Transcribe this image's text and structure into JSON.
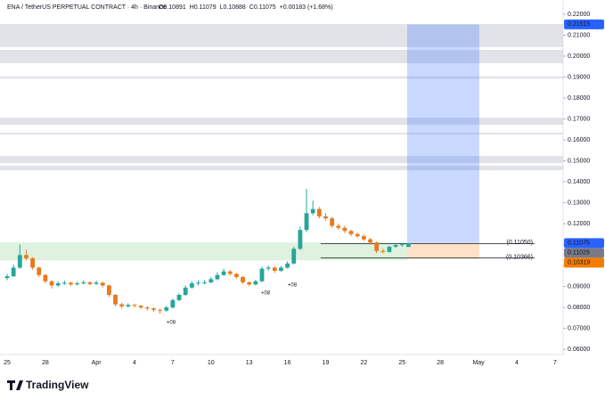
{
  "header": {
    "symbol": "ENA / TetherUS PERPETUAL CONTRACT · 4h · Binance",
    "ohlc": [
      "O0.10891",
      "H0.11079",
      "L0.10888",
      "C0.11075",
      "+0.00183 (+1.68%)"
    ]
  },
  "footer": {
    "brand": "TradingView"
  },
  "chart_data": {
    "type": "candlestick",
    "x": [
      0,
      0.5,
      1,
      1.5,
      2,
      2.5,
      3,
      3.5,
      4,
      4.5,
      5,
      5.5,
      6,
      6.5,
      7,
      7.5,
      8,
      8.5,
      9,
      9.5,
      10,
      10.5,
      11,
      11.5,
      12,
      12.5,
      13,
      13.5,
      14,
      14.5,
      15,
      15.5,
      16,
      16.5,
      17,
      17.5,
      18,
      18.5,
      19,
      19.5,
      20,
      20.5,
      21,
      21.5,
      22,
      22.5,
      23,
      23.5,
      24,
      24.5,
      25,
      25.5,
      26,
      26.5,
      27,
      27.5,
      28,
      28.5,
      29,
      29.5,
      30,
      30.5,
      31,
      31.5
    ],
    "open": [
      0.094,
      0.0949,
      0.099,
      0.105,
      0.1035,
      0.099,
      0.0955,
      0.0925,
      0.0905,
      0.0915,
      0.0918,
      0.091,
      0.0915,
      0.092,
      0.0912,
      0.0918,
      0.0905,
      0.086,
      0.0815,
      0.0805,
      0.0812,
      0.0808,
      0.08,
      0.0795,
      0.0788,
      0.0785,
      0.08,
      0.0835,
      0.086,
      0.0895,
      0.0915,
      0.0918,
      0.092,
      0.0935,
      0.0955,
      0.0972,
      0.096,
      0.0945,
      0.092,
      0.091,
      0.0925,
      0.0985,
      0.099,
      0.0975,
      0.099,
      0.101,
      0.108,
      0.117,
      0.125,
      0.127,
      0.1235,
      0.1225,
      0.119,
      0.118,
      0.1165,
      0.115,
      0.114,
      0.1125,
      0.111,
      0.107,
      0.1065,
      0.109,
      0.1098,
      0.10891
    ],
    "high": [
      0.096,
      0.1005,
      0.11,
      0.1075,
      0.104,
      0.0995,
      0.096,
      0.093,
      0.0925,
      0.0928,
      0.0922,
      0.0924,
      0.093,
      0.0925,
      0.0928,
      0.0922,
      0.091,
      0.0865,
      0.0822,
      0.082,
      0.0818,
      0.0812,
      0.0805,
      0.08,
      0.0795,
      0.0808,
      0.0842,
      0.0868,
      0.0905,
      0.0925,
      0.093,
      0.0932,
      0.0945,
      0.0968,
      0.0985,
      0.0978,
      0.0965,
      0.095,
      0.0925,
      0.0932,
      0.0995,
      0.1,
      0.0998,
      0.0998,
      0.102,
      0.109,
      0.1185,
      0.1366,
      0.131,
      0.128,
      0.125,
      0.1232,
      0.12,
      0.119,
      0.1172,
      0.1158,
      0.1148,
      0.1132,
      0.1115,
      0.108,
      0.1095,
      0.1102,
      0.1108,
      0.11079
    ],
    "low": [
      0.093,
      0.0945,
      0.0985,
      0.1025,
      0.098,
      0.0945,
      0.0915,
      0.089,
      0.0898,
      0.0908,
      0.0902,
      0.0905,
      0.091,
      0.0905,
      0.0908,
      0.0895,
      0.085,
      0.0805,
      0.0795,
      0.08,
      0.08,
      0.0792,
      0.0785,
      0.0778,
      0.077,
      0.078,
      0.0795,
      0.083,
      0.0855,
      0.089,
      0.0905,
      0.091,
      0.0915,
      0.093,
      0.095,
      0.0952,
      0.0938,
      0.0912,
      0.0902,
      0.0905,
      0.092,
      0.0975,
      0.0965,
      0.097,
      0.0985,
      0.1005,
      0.1075,
      0.116,
      0.124,
      0.1225,
      0.1215,
      0.118,
      0.117,
      0.1155,
      0.114,
      0.1132,
      0.1118,
      0.11,
      0.106,
      0.1058,
      0.1062,
      0.1085,
      0.109,
      0.10888
    ],
    "close": [
      0.0949,
      0.099,
      0.105,
      0.1035,
      0.099,
      0.0955,
      0.0925,
      0.0905,
      0.0915,
      0.0918,
      0.091,
      0.0915,
      0.092,
      0.0912,
      0.0918,
      0.0905,
      0.086,
      0.0815,
      0.0805,
      0.0812,
      0.0808,
      0.08,
      0.0795,
      0.0788,
      0.0785,
      0.08,
      0.0835,
      0.086,
      0.0895,
      0.0915,
      0.0918,
      0.092,
      0.0935,
      0.0955,
      0.0972,
      0.096,
      0.0945,
      0.092,
      0.091,
      0.0925,
      0.0985,
      0.099,
      0.0975,
      0.099,
      0.101,
      0.108,
      0.117,
      0.125,
      0.127,
      0.1235,
      0.1225,
      0.119,
      0.118,
      0.1165,
      0.115,
      0.114,
      0.1125,
      0.111,
      0.107,
      0.1065,
      0.109,
      0.1098,
      0.1102,
      0.11075
    ],
    "up_color": "#26a69a",
    "down_color": "#e8791d",
    "xlim": [
      -0.56,
      43.64
    ],
    "xticks": [
      {
        "value": 0,
        "label": "25"
      },
      {
        "value": 3,
        "label": "28"
      },
      {
        "value": 7,
        "label": "Apr"
      },
      {
        "value": 10,
        "label": "4"
      },
      {
        "value": 13,
        "label": "7"
      },
      {
        "value": 16,
        "label": "10"
      },
      {
        "value": 19,
        "label": "13"
      },
      {
        "value": 22,
        "label": "16"
      },
      {
        "value": 25,
        "label": "19"
      },
      {
        "value": 28,
        "label": "22"
      },
      {
        "value": 31,
        "label": "25"
      },
      {
        "value": 34,
        "label": "28"
      },
      {
        "value": 37,
        "label": "May"
      },
      {
        "value": 40,
        "label": "4"
      },
      {
        "value": 43,
        "label": "7"
      }
    ],
    "ylim": [
      0.0575,
      0.2268
    ],
    "yticks": [
      {
        "value": 0.06,
        "label": "0.06000"
      },
      {
        "value": 0.07,
        "label": "0.07000"
      },
      {
        "value": 0.08,
        "label": "0.08000"
      },
      {
        "value": 0.09,
        "label": "0.09000"
      },
      {
        "value": 0.1,
        "label": "0.10000"
      },
      {
        "value": 0.11,
        "label": "0.11000"
      },
      {
        "value": 0.12,
        "label": "0.12000"
      },
      {
        "value": 0.13,
        "label": "0.13000"
      },
      {
        "value": 0.14,
        "label": "0.14000"
      },
      {
        "value": 0.15,
        "label": "0.15000"
      },
      {
        "value": 0.16,
        "label": "0.16000"
      },
      {
        "value": 0.17,
        "label": "0.17000"
      },
      {
        "value": 0.18,
        "label": "0.18000"
      },
      {
        "value": 0.19,
        "label": "0.19000"
      },
      {
        "value": 0.2,
        "label": "0.20000"
      },
      {
        "value": 0.21,
        "label": "0.21000"
      },
      {
        "value": 0.22,
        "label": "0.22000"
      }
    ],
    "zones": [
      [
        0.2043,
        0.2153
      ],
      [
        0.1966,
        0.203
      ],
      [
        0.1893,
        0.1903
      ],
      [
        0.1672,
        0.1706
      ],
      [
        0.1626,
        0.1634
      ],
      [
        0.1489,
        0.1523
      ],
      [
        0.1455,
        0.1477
      ]
    ],
    "demand_zone": {
      "x": [
        -0.56,
        31.4
      ],
      "range": [
        0.1025,
        0.111
      ]
    },
    "position": {
      "x": [
        31.4,
        37.06
      ],
      "entry": 0.11075,
      "target": 0.21515,
      "stop": 0.10319
    },
    "levels": [
      {
        "value": 0.1105,
        "label": "(0.11050)",
        "x": [
          24.6,
          41.4
        ]
      },
      {
        "value": 0.10366,
        "label": "(0.10366)",
        "x": [
          24.6,
          41.4
        ]
      }
    ],
    "markers": [
      {
        "value": 0.21515,
        "label": "0.21515",
        "color": "#2962ff"
      },
      {
        "value": 0.11075,
        "label": "0.11075",
        "color": "#2962ff"
      },
      {
        "value": 0.11029,
        "label": "0.11029",
        "color": "#787b86"
      },
      {
        "value": 0.10319,
        "label": "0.10319",
        "color": "#f57c00"
      }
    ],
    "annotations": [
      "+08",
      "+08",
      "+08"
    ]
  }
}
